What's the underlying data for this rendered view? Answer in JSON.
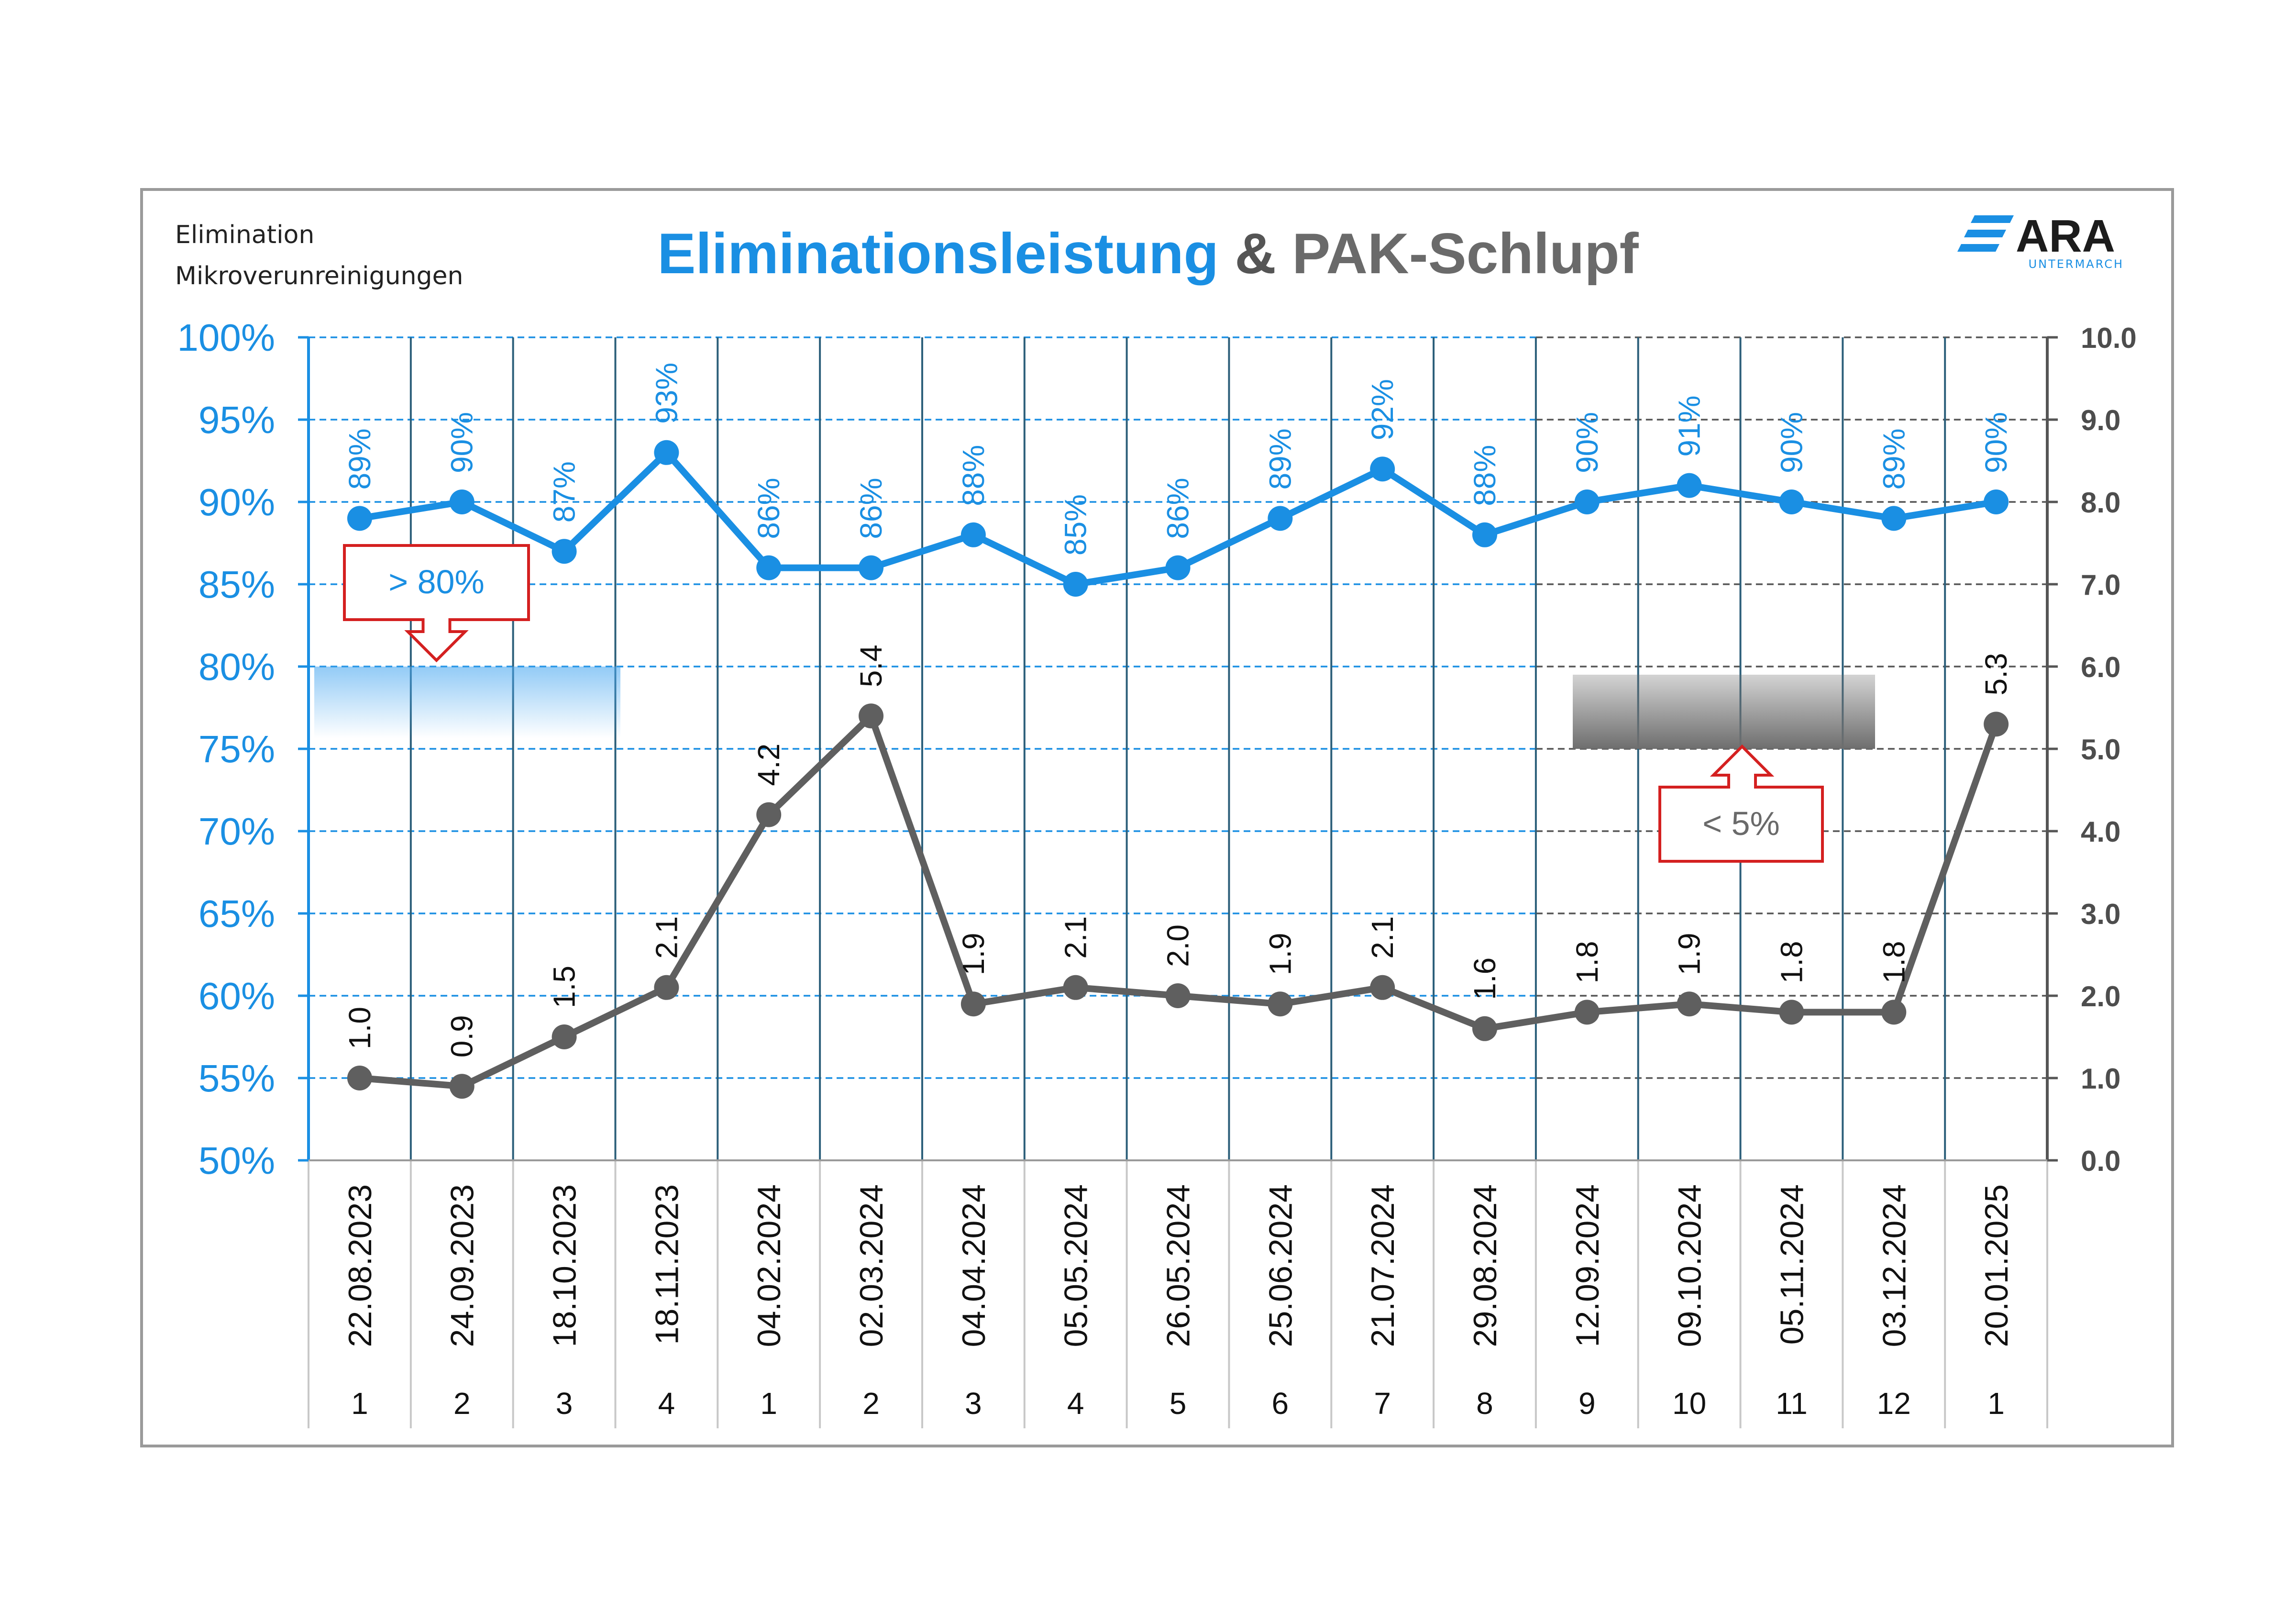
{
  "header": {
    "subtitle_line1": "Elimination",
    "subtitle_line2": "Mikroverunreinigungen",
    "title_part1": "Eliminationsleistung",
    "title_part2": "&",
    "title_part3": "PAK-Schlupf"
  },
  "logo": {
    "name": "ARA",
    "tagline": "UNTERMARCH",
    "color": "#1a8fe3"
  },
  "colors": {
    "elimination": "#1a8fe3",
    "schlupf": "#5f5f5f",
    "grid_left": "#1a8fe3",
    "grid_right": "#555555",
    "marker": "#d42020"
  },
  "chart_data": {
    "type": "line",
    "categories": [
      "22.08.2023",
      "24.09.2023",
      "18.10.2023",
      "18.11.2023",
      "04.02.2024",
      "02.03.2024",
      "04.04.2024",
      "05.05.2024",
      "26.05.2024",
      "25.06.2024",
      "21.07.2024",
      "29.08.2024",
      "12.09.2024",
      "09.10.2024",
      "05.11.2024",
      "03.12.2024",
      "20.01.2025"
    ],
    "sequence": [
      "1",
      "2",
      "3",
      "4",
      "1",
      "2",
      "3",
      "4",
      "5",
      "6",
      "7",
      "8",
      "9",
      "10",
      "11",
      "12",
      "1"
    ],
    "series": [
      {
        "axis": "left",
        "values": [
          89,
          90,
          87,
          93,
          86,
          86,
          88,
          85,
          86,
          89,
          92,
          88,
          90,
          91,
          90,
          89,
          90
        ],
        "labels": [
          "89%",
          "90%",
          "87%",
          "93%",
          "86%",
          "86%",
          "88%",
          "85%",
          "86%",
          "89%",
          "92%",
          "88%",
          "90%",
          "91%",
          "90%",
          "89%",
          "90%"
        ]
      },
      {
        "axis": "right",
        "values": [
          1.0,
          0.9,
          1.5,
          2.1,
          4.2,
          5.4,
          1.9,
          2.1,
          2.0,
          1.9,
          2.1,
          1.6,
          1.8,
          1.9,
          1.8,
          1.8,
          5.3
        ],
        "labels": [
          "1.0",
          "0.9",
          "1.5",
          "2.1",
          "4.2",
          "5.4",
          "1.9",
          "2.1",
          "2.0",
          "1.9",
          "2.1",
          "1.6",
          "1.8",
          "1.9",
          "1.8",
          "1.8",
          "5.3"
        ]
      }
    ],
    "y_left": {
      "range": [
        50,
        100
      ],
      "step": 5,
      "ticks": [
        "50%",
        "55%",
        "60%",
        "65%",
        "70%",
        "75%",
        "80%",
        "85%",
        "90%",
        "95%",
        "100%"
      ]
    },
    "y_right": {
      "range": [
        0,
        10
      ],
      "step": 1,
      "ticks": [
        "0.0",
        "1.0",
        "2.0",
        "3.0",
        "4.0",
        "5.0",
        "6.0",
        "7.0",
        "8.0",
        "9.0",
        "10.0"
      ]
    },
    "grid": true,
    "annotations": [
      {
        "text": "> 80%",
        "axis": "left",
        "threshold": 80,
        "arrow": "down"
      },
      {
        "text": "< 5%",
        "axis": "right",
        "threshold": 5,
        "arrow": "up"
      }
    ]
  }
}
